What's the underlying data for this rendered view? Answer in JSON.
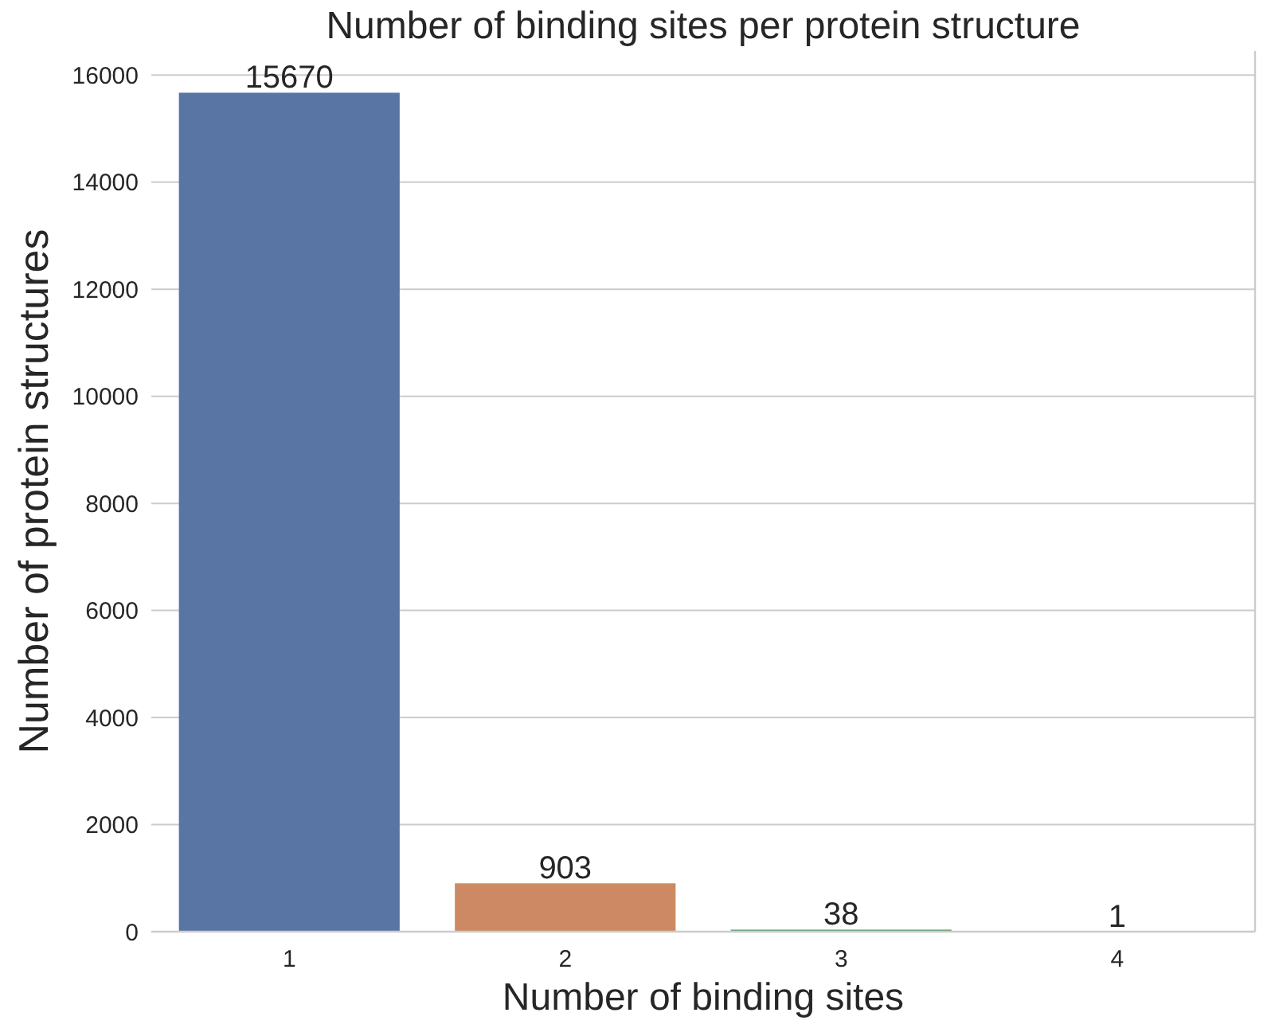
{
  "chart_data": {
    "type": "bar",
    "title": "Number of binding sites per protein structure",
    "xlabel": "Number of binding sites",
    "ylabel": "Number of protein structures",
    "categories": [
      "1",
      "2",
      "3",
      "4"
    ],
    "values": [
      15670,
      903,
      38,
      1
    ],
    "colors": [
      "#5975a4",
      "#cc8963",
      "#5f9e6e",
      "#b55d60"
    ],
    "ylim": [
      0,
      16450
    ],
    "yticks": [
      0,
      2000,
      4000,
      6000,
      8000,
      10000,
      12000,
      14000,
      16000
    ],
    "grid": "y",
    "data_labels": true
  }
}
